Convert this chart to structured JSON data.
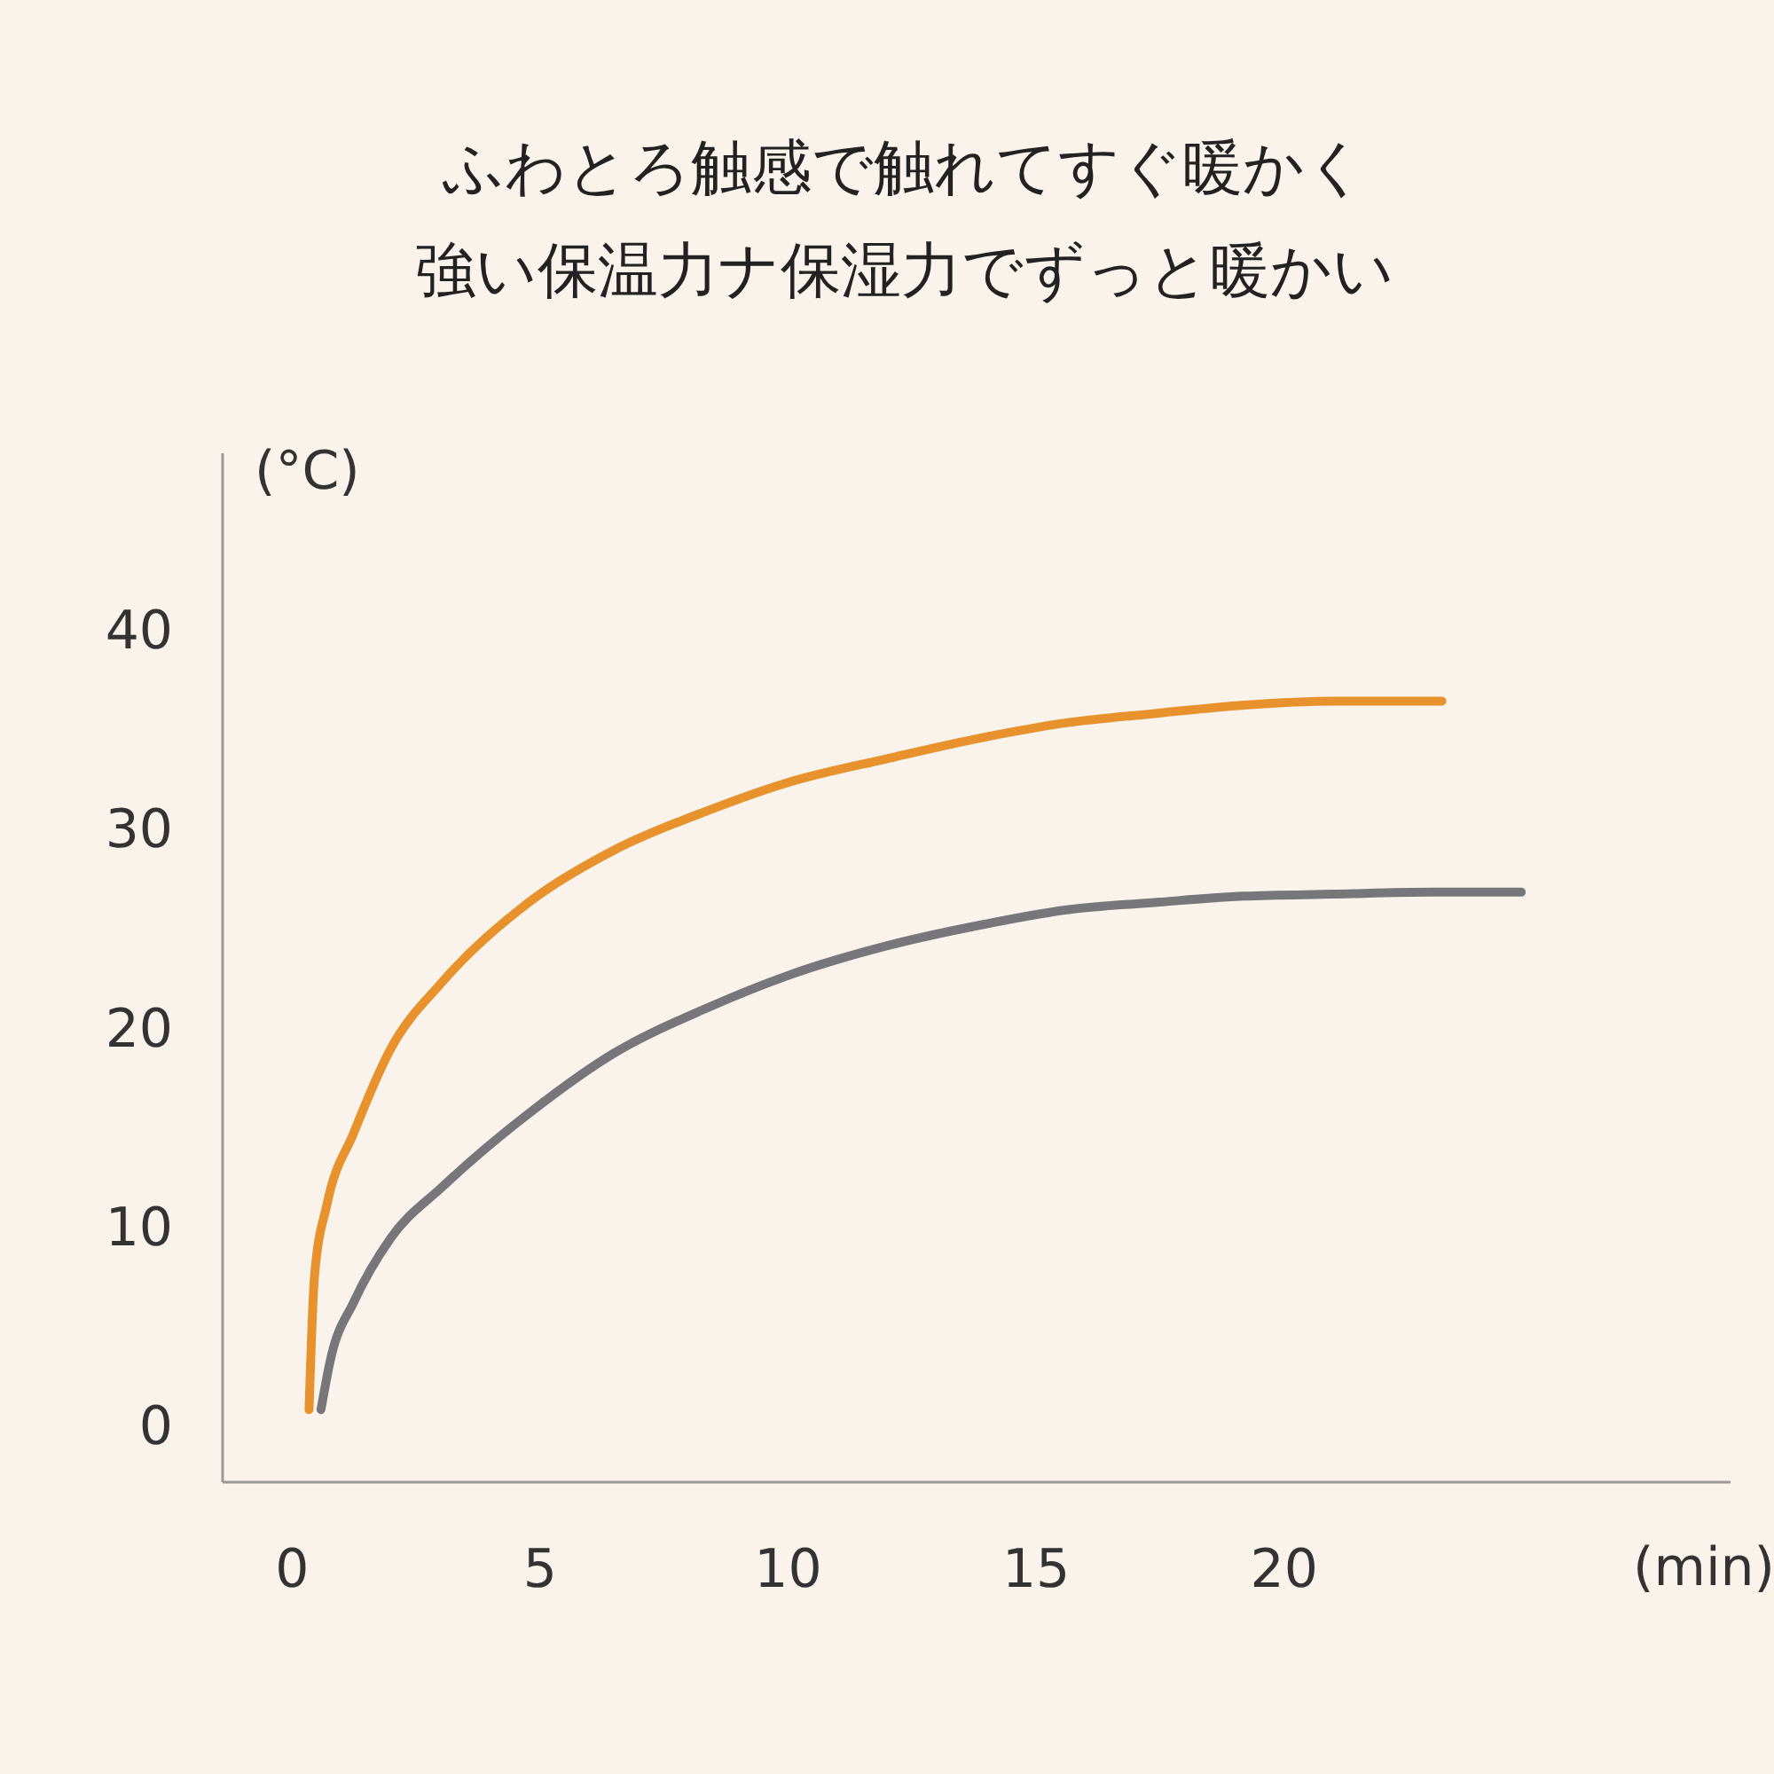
{
  "chart_data": {
    "type": "line",
    "title": "ふわとろ触感で触れてすぐ暖かく",
    "subtitle": "強い保温力ナ保湿力でずっと暖かい",
    "xlabel": "(min)",
    "ylabel": "(°C)",
    "xlim": [
      -1.4,
      29
    ],
    "ylim": [
      -2.7,
      49
    ],
    "xticks": [
      0,
      5,
      10,
      15,
      20
    ],
    "yticks": [
      0,
      10,
      20,
      30,
      40
    ],
    "grid": false,
    "series": [
      {
        "color": "#e8922e",
        "x": [
          0.36,
          0.47,
          0.72,
          1.26,
          2.0,
          3.05,
          4.85,
          6.5,
          8.4,
          10,
          12,
          14,
          15.6,
          17.5,
          19.2,
          21,
          23.2
        ],
        "values": [
          0.9,
          7.6,
          11.2,
          14.8,
          19,
          22.4,
          26.5,
          29,
          31,
          32.4,
          33.6,
          34.7,
          35.4,
          35.9,
          36.3,
          36.5,
          36.5
        ]
      },
      {
        "color": "#77767a",
        "x": [
          0.6,
          0.8,
          1.26,
          2.0,
          3.05,
          4.85,
          6.5,
          8.4,
          10,
          12,
          14,
          15.6,
          17.5,
          19.2,
          21,
          23,
          24.8
        ],
        "values": [
          0.9,
          3.5,
          6.3,
          9.5,
          12.1,
          15.9,
          18.8,
          21.1,
          22.7,
          24.2,
          25.3,
          26,
          26.4,
          26.7,
          26.8,
          26.9,
          26.9
        ]
      }
    ]
  }
}
